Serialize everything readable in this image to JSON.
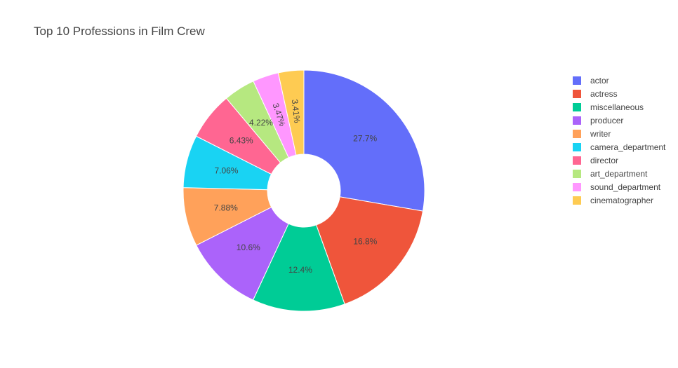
{
  "chart_data": {
    "type": "pie",
    "title": "Top 10 Professions in Film Crew",
    "hole": true,
    "legend_position": "right",
    "labels": [
      "actor",
      "actress",
      "miscellaneous",
      "producer",
      "writer",
      "camera_department",
      "director",
      "art_department",
      "sound_department",
      "cinematographer"
    ],
    "values": [
      27.7,
      16.8,
      12.4,
      10.6,
      7.88,
      7.06,
      6.43,
      4.22,
      3.47,
      3.41
    ],
    "text_labels": [
      "27.7%",
      "16.8%",
      "12.4%",
      "10.6%",
      "7.88%",
      "7.06%",
      "6.43%",
      "4.22%",
      "3.47%",
      "3.41%"
    ],
    "colors": [
      "#636efa",
      "#EF553B",
      "#00cc96",
      "#ab63fa",
      "#FFA15A",
      "#19d3f3",
      "#FF6692",
      "#B6E880",
      "#FF97FF",
      "#FECB52"
    ]
  }
}
